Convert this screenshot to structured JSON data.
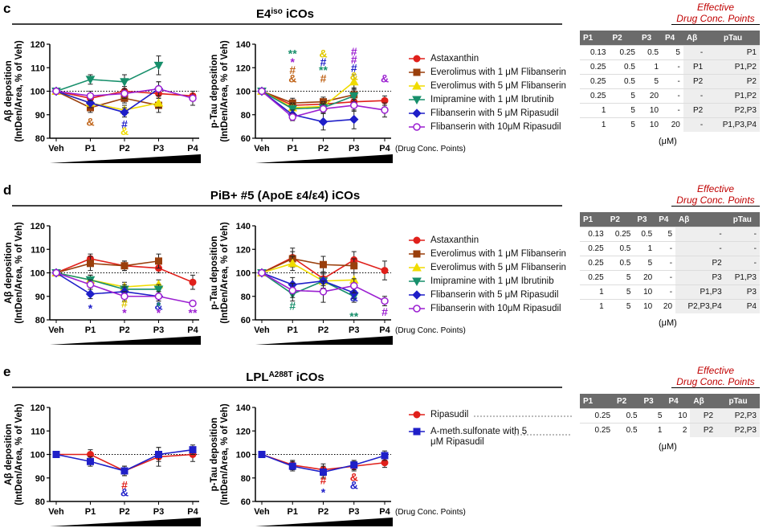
{
  "panels": [
    {
      "letter": "c",
      "title": [
        {
          "text": "E4"
        },
        {
          "text": "iso",
          "sup": true
        },
        {
          "text": " iCOs"
        }
      ],
      "x_note": "(Drug Conc. Points)",
      "table": {
        "header_note": [
          "Effective",
          "Drug Conc. Points"
        ],
        "columns": [
          "P1",
          "P2",
          "P3",
          "P4",
          "Aβ",
          "pTau"
        ],
        "unit": "(μM)",
        "rows": [
          [
            "0.13",
            "0.25",
            "0.5",
            "5",
            "-",
            "P1"
          ],
          [
            "0.25",
            "0.5",
            "1",
            "-",
            "P1",
            "P1,P2"
          ],
          [
            "0.25",
            "0.5",
            "5",
            "-",
            "P2",
            "P2"
          ],
          [
            "0.25",
            "5",
            "20",
            "-",
            "-",
            "P1,P2"
          ],
          [
            "1",
            "5",
            "10",
            "-",
            "P2",
            "P2,P3"
          ],
          [
            "1",
            "5",
            "10",
            "20",
            "-",
            "P1,P3,P4"
          ]
        ]
      }
    },
    {
      "letter": "d",
      "title": [
        {
          "text": "PiB+ #5 (ApoE ε4/ε4) iCOs"
        }
      ],
      "x_note": "(Drug Conc. Points)",
      "table": {
        "header_note": [
          "Effective",
          "Drug Conc. Points"
        ],
        "columns": [
          "P1",
          "P2",
          "P3",
          "P4",
          "Aβ",
          "pTau"
        ],
        "unit": "(μM)",
        "rows": [
          [
            "0.13",
            "0.25",
            "0.5",
            "5",
            "-",
            "-"
          ],
          [
            "0.25",
            "0.5",
            "1",
            "-",
            "-",
            "-"
          ],
          [
            "0.25",
            "0.5",
            "5",
            "-",
            "P2",
            "-"
          ],
          [
            "0.25",
            "5",
            "20",
            "-",
            "P3",
            "P1,P3"
          ],
          [
            "1",
            "5",
            "10",
            "-",
            "P1,P3",
            "P3"
          ],
          [
            "1",
            "5",
            "10",
            "20",
            "P2,P3,P4",
            "P4"
          ]
        ]
      }
    },
    {
      "letter": "e",
      "title": [
        {
          "text": "LPL"
        },
        {
          "text": "A288T",
          "sup": true
        },
        {
          "text": " iCOs"
        }
      ],
      "x_note": "(Drug Conc. Points)",
      "table": {
        "header_note": [
          "Effective",
          "Drug Conc. Points"
        ],
        "columns": [
          "P1",
          "P2",
          "P3",
          "P4",
          "Aβ",
          "pTau"
        ],
        "unit": "(μM)",
        "rows": [
          [
            "0.25",
            "0.5",
            "5",
            "10",
            "P2",
            "P2,P3"
          ],
          [
            "0.25",
            "0.5",
            "1",
            "2",
            "P2",
            "P2,P3"
          ]
        ]
      }
    }
  ],
  "chart_data": [
    {
      "type": "line",
      "ylabel": [
        "Aβ deposition",
        "(IntDen/Area, % of Veh)"
      ],
      "categories": [
        "Veh",
        "P1",
        "P2",
        "P3",
        "P4"
      ],
      "ylim": [
        80,
        120
      ],
      "yticks": [
        80,
        90,
        100,
        110,
        120
      ],
      "reference_line": 100,
      "series": [
        {
          "color": "#e0201b",
          "marker": "circle",
          "values": [
            100,
            97,
            100,
            99,
            98
          ],
          "errors": [
            0,
            2,
            2,
            2,
            2
          ]
        },
        {
          "color": "#9a3f0c",
          "marker": "square",
          "values": [
            100,
            93,
            97,
            94,
            null
          ],
          "errors": [
            0,
            2,
            2,
            3,
            null
          ]
        },
        {
          "color": "#f0dc00",
          "marker": "triangle-up",
          "values": [
            100,
            95,
            92,
            95,
            null
          ],
          "errors": [
            0,
            2,
            2,
            2,
            null
          ]
        },
        {
          "color": "#178f6b",
          "marker": "triangle-down",
          "values": [
            100,
            105,
            104,
            111,
            null
          ],
          "errors": [
            0,
            2,
            3,
            4,
            null
          ]
        },
        {
          "color": "#1f1fc8",
          "marker": "diamond",
          "values": [
            100,
            95,
            91,
            101,
            null
          ],
          "errors": [
            0,
            2,
            2,
            3,
            null
          ]
        },
        {
          "color": "#9b1fd1",
          "marker": "circle-open",
          "values": [
            100,
            98,
            99,
            101,
            97
          ],
          "errors": [
            0,
            2,
            2,
            3,
            3
          ]
        }
      ],
      "annotations": [
        {
          "text": "&",
          "category": "P1",
          "y": 87,
          "color": "#c0651a"
        },
        {
          "text": "#",
          "category": "P2",
          "y": 86,
          "color": "#1f1fc8"
        },
        {
          "text": "&",
          "category": "P2",
          "y": 83,
          "color": "#f0dc00"
        }
      ]
    },
    {
      "type": "line",
      "ylabel": [
        "p-Tau deposition",
        "(IntDen/Area, % of Veh)"
      ],
      "categories": [
        "Veh",
        "P1",
        "P2",
        "P3",
        "P4"
      ],
      "ylim": [
        60,
        140
      ],
      "yticks": [
        60,
        80,
        100,
        120,
        140
      ],
      "reference_line": 100,
      "series": [
        {
          "name": "Astaxanthin",
          "color": "#e0201b",
          "marker": "circle",
          "values": [
            100,
            88,
            89,
            91,
            92
          ],
          "errors": [
            0,
            4,
            4,
            5,
            4
          ]
        },
        {
          "name": "Everolimus with 1 μM Flibanserin",
          "color": "#9a3f0c",
          "marker": "square",
          "values": [
            100,
            90,
            91,
            97,
            null
          ],
          "errors": [
            0,
            4,
            4,
            6,
            null
          ]
        },
        {
          "name": "Everolimus with 5 μM Flibanserin",
          "color": "#f0dc00",
          "marker": "triangle-up",
          "values": [
            100,
            86,
            87,
            108,
            null
          ],
          "errors": [
            0,
            4,
            4,
            6,
            null
          ]
        },
        {
          "name": "Imipramine with 1 μM Ibrutinib",
          "color": "#178f6b",
          "marker": "triangle-down",
          "values": [
            100,
            85,
            86,
            96,
            null
          ],
          "errors": [
            0,
            4,
            4,
            5,
            null
          ]
        },
        {
          "name": "Flibanserin with 5 μM Ripasudil",
          "color": "#1f1fc8",
          "marker": "diamond",
          "values": [
            100,
            80,
            74,
            76,
            null
          ],
          "errors": [
            0,
            4,
            7,
            8,
            null
          ]
        },
        {
          "name": "Flibanserin with 10μM Ripasudil",
          "color": "#9b1fd1",
          "marker": "circle-open",
          "values": [
            100,
            78,
            85,
            88,
            84
          ],
          "errors": [
            0,
            3,
            4,
            5,
            6
          ]
        }
      ],
      "annotations": [
        {
          "text": "**",
          "category": "P1",
          "y": 132,
          "color": "#178f6b"
        },
        {
          "text": "*",
          "category": "P1",
          "y": 125,
          "color": "#9b1fd1"
        },
        {
          "text": "#",
          "category": "P1",
          "y": 118,
          "color": "#c0651a"
        },
        {
          "text": "&",
          "category": "P1",
          "y": 111,
          "color": "#c0651a"
        },
        {
          "text": "&",
          "category": "P2",
          "y": 132,
          "color": "#e0c800"
        },
        {
          "text": "#",
          "category": "P2",
          "y": 125,
          "color": "#1f1fc8"
        },
        {
          "text": "**",
          "category": "P2",
          "y": 118,
          "color": "#178f6b"
        },
        {
          "text": "#",
          "category": "P2",
          "y": 111,
          "color": "#c0651a"
        },
        {
          "text": "#",
          "category": "P3",
          "y": 134,
          "color": "#9b1fd1"
        },
        {
          "text": "#",
          "category": "P3",
          "y": 127,
          "color": "#9b1fd1"
        },
        {
          "text": "#",
          "category": "P3",
          "y": 120,
          "color": "#1f1fc8"
        },
        {
          "text": "&",
          "category": "P3",
          "y": 113,
          "color": "#e0c800"
        },
        {
          "text": "&",
          "category": "P4",
          "y": 111,
          "color": "#9b1fd1"
        }
      ]
    },
    {
      "type": "line",
      "ylabel": [
        "Aβ deposition",
        "(IntDen/Area, % of Veh)"
      ],
      "categories": [
        "Veh",
        "P1",
        "P2",
        "P3",
        "P4"
      ],
      "ylim": [
        80,
        120
      ],
      "yticks": [
        80,
        90,
        100,
        110,
        120
      ],
      "reference_line": 100,
      "series": [
        {
          "color": "#e0201b",
          "marker": "circle",
          "values": [
            100,
            106,
            103,
            102,
            96
          ],
          "errors": [
            0,
            2,
            2,
            2,
            3
          ]
        },
        {
          "color": "#9a3f0c",
          "marker": "square",
          "values": [
            100,
            104,
            103,
            105,
            null
          ],
          "errors": [
            0,
            3,
            2,
            3,
            null
          ]
        },
        {
          "color": "#f0dc00",
          "marker": "triangle-up",
          "values": [
            100,
            97,
            94,
            95,
            null
          ],
          "errors": [
            0,
            2,
            2,
            2,
            null
          ]
        },
        {
          "color": "#178f6b",
          "marker": "triangle-down",
          "values": [
            100,
            97,
            93,
            93,
            null
          ],
          "errors": [
            0,
            2,
            2,
            2,
            null
          ]
        },
        {
          "color": "#1f1fc8",
          "marker": "diamond",
          "values": [
            100,
            91,
            92,
            90,
            null
          ],
          "errors": [
            0,
            2,
            2,
            2,
            null
          ]
        },
        {
          "color": "#9b1fd1",
          "marker": "circle-open",
          "values": [
            100,
            95,
            90,
            90,
            87
          ],
          "errors": [
            0,
            2,
            2,
            2,
            1
          ]
        }
      ],
      "annotations": [
        {
          "text": "*",
          "category": "P1",
          "y": 85,
          "color": "#1f1fc8"
        },
        {
          "text": "#",
          "category": "P2",
          "y": 87,
          "color": "#e0c800"
        },
        {
          "text": "*",
          "category": "P2",
          "y": 83,
          "color": "#9b1fd1"
        },
        {
          "text": "&",
          "category": "P3",
          "y": 86,
          "color": "#1f1fc8"
        },
        {
          "text": "*",
          "category": "P3",
          "y": 86,
          "color": "#178f6b"
        },
        {
          "text": "*",
          "category": "P3",
          "y": 83,
          "color": "#9b1fd1"
        },
        {
          "text": "**",
          "category": "P4",
          "y": 83,
          "color": "#9b1fd1"
        }
      ]
    },
    {
      "type": "line",
      "ylabel": [
        "p-Tau deposition",
        "(IntDen/Area, % of Veh)"
      ],
      "categories": [
        "Veh",
        "P1",
        "P2",
        "P3",
        "P4"
      ],
      "ylim": [
        60,
        140
      ],
      "yticks": [
        60,
        80,
        100,
        120,
        140
      ],
      "reference_line": 100,
      "series": [
        {
          "name": "Astaxanthin",
          "color": "#e0201b",
          "marker": "circle",
          "values": [
            100,
            113,
            95,
            111,
            102
          ],
          "errors": [
            0,
            8,
            6,
            7,
            8
          ]
        },
        {
          "name": "Everolimus with 1 μM Flibanserin",
          "color": "#9a3f0c",
          "marker": "square",
          "values": [
            100,
            112,
            107,
            106,
            null
          ],
          "errors": [
            0,
            6,
            7,
            6,
            null
          ]
        },
        {
          "name": "Everolimus with 5 μM Flibanserin",
          "color": "#f0dc00",
          "marker": "triangle-up",
          "values": [
            100,
            108,
            93,
            94,
            null
          ],
          "errors": [
            0,
            6,
            6,
            6,
            null
          ]
        },
        {
          "name": "Imipramine with 1 μM Ibrutinib",
          "color": "#178f6b",
          "marker": "triangle-down",
          "values": [
            100,
            82,
            93,
            80,
            null
          ],
          "errors": [
            0,
            6,
            6,
            5,
            null
          ]
        },
        {
          "name": "Flibanserin with 5 μM Ripasudil",
          "color": "#1f1fc8",
          "marker": "diamond",
          "values": [
            100,
            90,
            93,
            83,
            null
          ],
          "errors": [
            0,
            6,
            6,
            5,
            null
          ]
        },
        {
          "name": "Flibanserin with 10μM Ripasudil",
          "color": "#9b1fd1",
          "marker": "circle-open",
          "values": [
            100,
            85,
            84,
            89,
            76
          ],
          "errors": [
            0,
            6,
            9,
            6,
            4
          ]
        }
      ],
      "annotations": [
        {
          "text": "#",
          "category": "P1",
          "y": 72,
          "color": "#178f6b"
        },
        {
          "text": "&",
          "category": "P3",
          "y": 79,
          "color": "#1f1fc8"
        },
        {
          "text": "**",
          "category": "P3",
          "y": 63,
          "color": "#178f6b"
        },
        {
          "text": "#",
          "category": "P4",
          "y": 67,
          "color": "#9b1fd1"
        }
      ]
    },
    {
      "type": "line",
      "ylabel": [
        "Aβ deposition",
        "(IntDen/Area, % of Veh)"
      ],
      "categories": [
        "Veh",
        "P1",
        "P2",
        "P3",
        "P4"
      ],
      "ylim": [
        80,
        120
      ],
      "yticks": [
        80,
        90,
        100,
        110,
        120
      ],
      "reference_line": 100,
      "series": [
        {
          "color": "#e0201b",
          "marker": "circle",
          "values": [
            100,
            100,
            93,
            99,
            100
          ],
          "errors": [
            0,
            2,
            2,
            4,
            3
          ]
        },
        {
          "color": "#1f1fc8",
          "marker": "square",
          "values": [
            100,
            97,
            93,
            100,
            102
          ],
          "errors": [
            0,
            2,
            2,
            3,
            2
          ]
        }
      ],
      "annotations": [
        {
          "text": "#",
          "category": "P2",
          "y": 87,
          "color": "#e0201b"
        },
        {
          "text": "&",
          "category": "P2",
          "y": 84,
          "color": "#1f1fc8"
        }
      ]
    },
    {
      "type": "line",
      "ylabel": [
        "p-Tau deposition",
        "(IntDen/Area, % of Veh)"
      ],
      "categories": [
        "Veh",
        "P1",
        "P2",
        "P3",
        "P4"
      ],
      "ylim": [
        60,
        140
      ],
      "yticks": [
        60,
        80,
        100,
        120,
        140
      ],
      "reference_line": 100,
      "series": [
        {
          "name": "Ripasudil",
          "color": "#e0201b",
          "marker": "circle",
          "values": [
            100,
            91,
            87,
            90,
            93
          ],
          "errors": [
            0,
            4,
            5,
            4,
            4
          ]
        },
        {
          "name": "A-meth.sulfonate with 5 μM Ripasudil",
          "color": "#1f1fc8",
          "marker": "square",
          "values": [
            100,
            90,
            85,
            91,
            99
          ],
          "errors": [
            0,
            4,
            5,
            4,
            4
          ]
        }
      ],
      "annotations": [
        {
          "text": "#",
          "category": "P2",
          "y": 78,
          "color": "#e0201b"
        },
        {
          "text": "*",
          "category": "P2",
          "y": 68,
          "color": "#1f1fc8"
        },
        {
          "text": "&",
          "category": "P3",
          "y": 81,
          "color": "#e0201b"
        },
        {
          "text": "&",
          "category": "P3",
          "y": 74,
          "color": "#1f1fc8"
        }
      ]
    }
  ]
}
